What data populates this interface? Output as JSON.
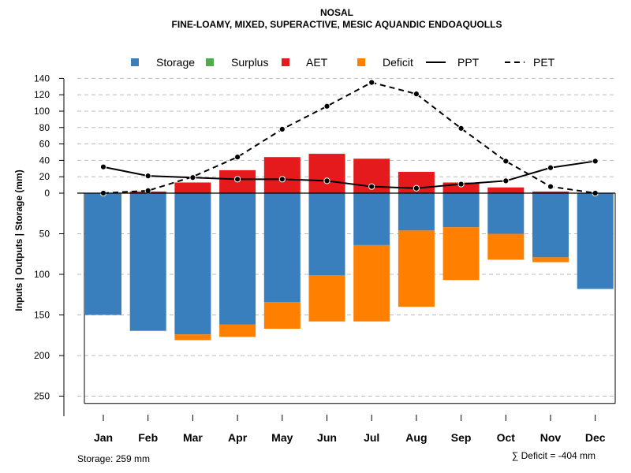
{
  "chart_data": {
    "type": "bar",
    "title": "NOSAL",
    "subtitle": "FINE-LOAMY, MIXED, SUPERACTIVE, MESIC AQUANDIC ENDOAQUOLLS",
    "ylabel": "Inputs | Outputs | Storage     (mm)",
    "categories": [
      "Jan",
      "Feb",
      "Mar",
      "Apr",
      "May",
      "Jun",
      "Jul",
      "Aug",
      "Sep",
      "Oct",
      "Nov",
      "Dec"
    ],
    "y_upper_ticks": [
      "140",
      "120",
      "100",
      "80",
      "60",
      "40",
      "20",
      "0"
    ],
    "y_lower_ticks": [
      "50",
      "100",
      "150",
      "200",
      "250"
    ],
    "ylim_upper": [
      0,
      140
    ],
    "ylim_lower": [
      0,
      259
    ],
    "legend": [
      {
        "key": "storage",
        "label": "Storage",
        "kind": "box"
      },
      {
        "key": "surplus",
        "label": "Surplus",
        "kind": "box"
      },
      {
        "key": "aet",
        "label": "AET",
        "kind": "box"
      },
      {
        "key": "deficit",
        "label": "Deficit",
        "kind": "box"
      },
      {
        "key": "ppt",
        "label": "PPT",
        "kind": "solid"
      },
      {
        "key": "pet",
        "label": "PET",
        "kind": "dashed"
      }
    ],
    "colors": {
      "storage": "#3A7FBD",
      "surplus": "#4DAF4A",
      "aet": "#E41A1C",
      "deficit": "#FF7F00",
      "line": "#000000",
      "grid": "#bbbbbb"
    },
    "series": [
      {
        "name": "AET",
        "values": [
          0,
          2,
          13,
          28,
          44,
          48,
          42,
          26,
          13,
          7,
          2,
          0
        ]
      },
      {
        "name": "Storage",
        "values": [
          150,
          169,
          174,
          162,
          134,
          101,
          64,
          46,
          42,
          50,
          79,
          118
        ]
      },
      {
        "name": "Deficit",
        "values": [
          0,
          1,
          7,
          15,
          33,
          57,
          94,
          94,
          65,
          32,
          6,
          0
        ]
      },
      {
        "name": "Surplus",
        "values": [
          0,
          0,
          0,
          0,
          0,
          0,
          0,
          0,
          0,
          0,
          0,
          0
        ]
      },
      {
        "name": "PPT",
        "values": [
          32,
          21,
          19,
          17,
          17,
          15,
          8,
          6,
          11,
          15,
          31,
          39
        ]
      },
      {
        "name": "PET",
        "values": [
          0,
          3,
          20,
          44,
          78,
          106,
          135,
          121,
          79,
          39,
          8,
          0
        ]
      }
    ],
    "footer_left": "Storage: 259 mm",
    "footer_right": "∑ Deficit = -404 mm"
  }
}
